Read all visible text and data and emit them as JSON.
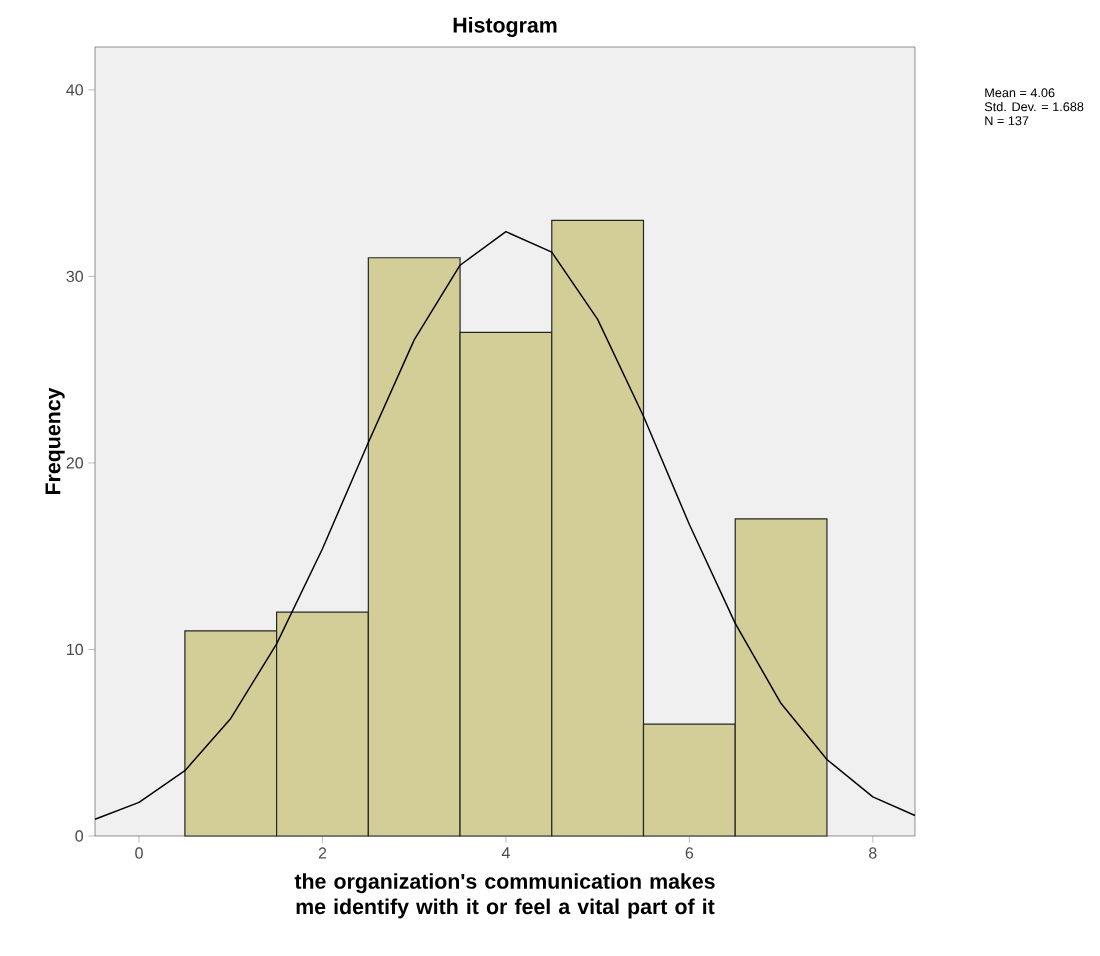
{
  "chart_data": {
    "type": "histogram",
    "title": "Histogram",
    "xlabel": "the organization's communication makes me identify with it or feel a vital part of it",
    "ylabel": "Frequency",
    "bins": [
      0.5,
      1.5,
      2.5,
      3.5,
      4.5,
      5.5,
      6.5,
      7.5
    ],
    "values": [
      11,
      12,
      31,
      27,
      33,
      6,
      17
    ],
    "color": "#d3ce97",
    "series": [
      {
        "type": "line",
        "color": "#000000",
        "x": [
          -0.48,
          0,
          0.5,
          1,
          1.5,
          2,
          2.5,
          3,
          3.5,
          4,
          4.5,
          5,
          5.5,
          6,
          6.5,
          7,
          7.5,
          8,
          8.46
        ],
        "values": [
          0.9,
          1.8,
          3.5,
          6.3,
          10.3,
          15.4,
          21.1,
          26.6,
          30.6,
          32.4,
          31.3,
          27.7,
          22.5,
          16.7,
          11.4,
          7.1,
          4.1,
          2.1,
          1.1
        ]
      }
    ],
    "xlim": [
      -0.48,
      8.46
    ],
    "ylim": [
      0,
      42.3
    ],
    "xticks": [
      0,
      2,
      4,
      6,
      8
    ],
    "yticks": [
      0,
      10,
      20,
      30,
      40
    ],
    "grid": false,
    "annotations": [
      "Mean = 4.06",
      "Std. Dev. = 1.688",
      "N = 137"
    ]
  }
}
